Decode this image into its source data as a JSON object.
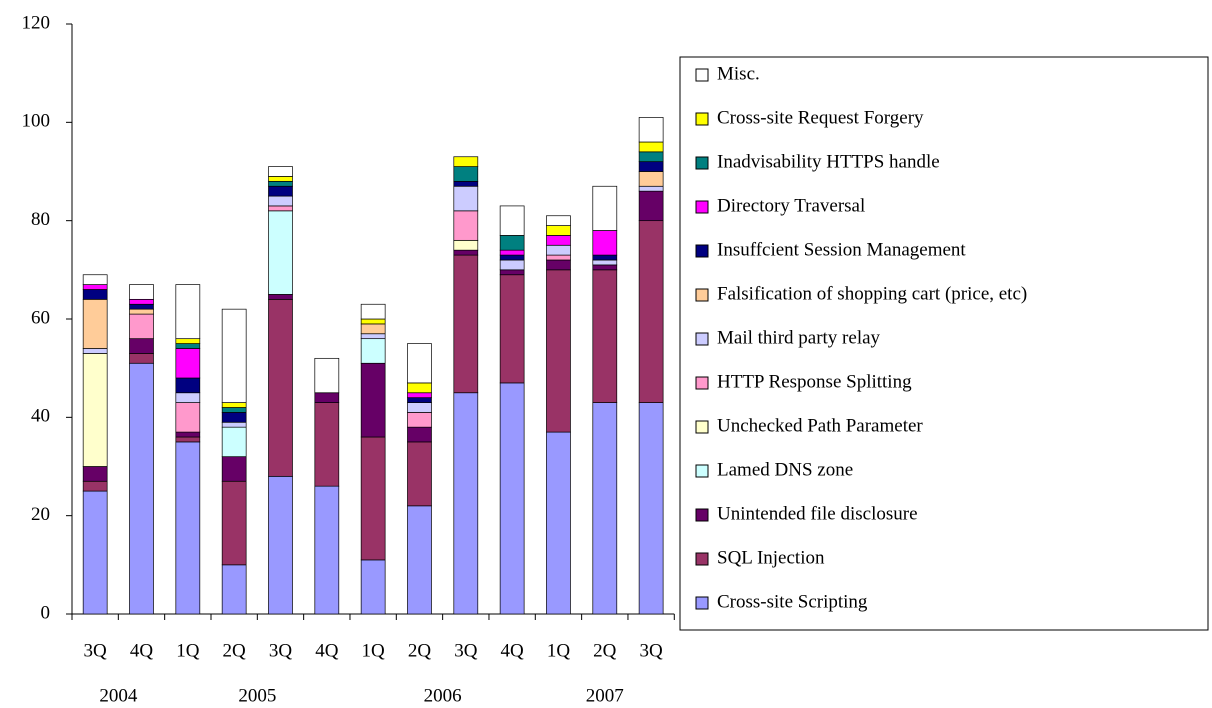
{
  "chart_data": {
    "type": "stacked_bar",
    "categories": [
      "3Q",
      "4Q",
      "1Q",
      "2Q",
      "3Q",
      "4Q",
      "1Q",
      "2Q",
      "3Q",
      "4Q",
      "1Q",
      "2Q",
      "3Q"
    ],
    "years": [
      "2004",
      "2005",
      "2006",
      "2007"
    ],
    "ylim": [
      0,
      120
    ],
    "yticks": [
      0,
      20,
      40,
      60,
      80,
      100,
      120
    ],
    "grid": false,
    "legend": "right",
    "series": [
      {
        "name": "Cross-site Scripting",
        "color": "#9999ff",
        "values": [
          25,
          51,
          35,
          10,
          28,
          26,
          11,
          22,
          45,
          47,
          37,
          43,
          43
        ]
      },
      {
        "name": "SQL Injection",
        "color": "#993366",
        "values": [
          2,
          2,
          1,
          17,
          36,
          17,
          25,
          13,
          28,
          22,
          33,
          27,
          37
        ]
      },
      {
        "name": "Unintended file disclosure",
        "color": "#660066",
        "values": [
          3,
          3,
          1,
          5,
          1,
          2,
          15,
          3,
          1,
          1,
          2,
          1,
          6
        ]
      },
      {
        "name": "Lamed DNS zone",
        "color": "#ccffff",
        "values": [
          0,
          0,
          0,
          6,
          17,
          0,
          5,
          0,
          0,
          0,
          0,
          0,
          0
        ]
      },
      {
        "name": "Unchecked Path Parameter",
        "color": "#ffffcc",
        "values": [
          23,
          0,
          0,
          0,
          0,
          0,
          0,
          0,
          2,
          0,
          0,
          0,
          0
        ]
      },
      {
        "name": "HTTP Response Splitting",
        "color": "#ff99cc",
        "values": [
          0,
          5,
          6,
          0,
          1,
          0,
          0,
          3,
          6,
          0,
          1,
          0,
          0
        ]
      },
      {
        "name": "Mail third party relay",
        "color": "#ccccff",
        "values": [
          1,
          0,
          2,
          1,
          2,
          0,
          1,
          2,
          5,
          2,
          2,
          1,
          1
        ]
      },
      {
        "name": "Falsification of shopping cart (price, etc)",
        "color": "#ffcc99",
        "values": [
          10,
          1,
          0,
          0,
          0,
          0,
          2,
          0,
          0,
          0,
          0,
          0,
          3
        ]
      },
      {
        "name": "Insuffcient Session Management",
        "color": "#000080",
        "values": [
          2,
          1,
          3,
          2,
          2,
          0,
          0,
          1,
          1,
          1,
          0,
          1,
          2
        ]
      },
      {
        "name": "Directory Traversal",
        "color": "#ff00ff",
        "values": [
          1,
          1,
          6,
          0,
          0,
          0,
          0,
          1,
          0,
          1,
          2,
          5,
          0
        ]
      },
      {
        "name": "Inadvisability HTTPS handle",
        "color": "#008080",
        "values": [
          0,
          0,
          1,
          1,
          1,
          0,
          0,
          0,
          3,
          3,
          0,
          0,
          2
        ]
      },
      {
        "name": "Cross-site Request Forgery",
        "color": "#ffff00",
        "values": [
          0,
          0,
          1,
          1,
          1,
          0,
          1,
          2,
          2,
          0,
          2,
          0,
          2
        ]
      },
      {
        "name": "Misc.",
        "color": "#ffffff",
        "values": [
          2,
          3,
          11,
          19,
          2,
          7,
          3,
          8,
          0,
          6,
          2,
          9,
          5
        ]
      }
    ]
  }
}
